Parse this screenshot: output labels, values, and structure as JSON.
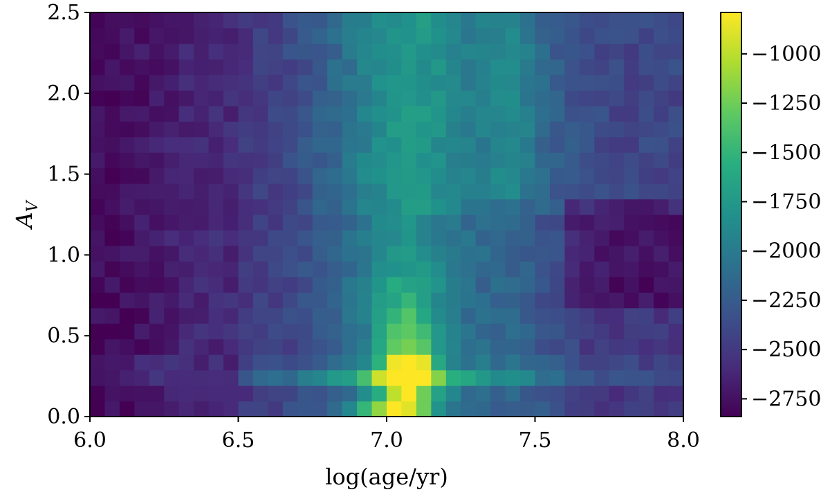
{
  "chart_data": {
    "type": "heatmap",
    "title": "",
    "xlabel": "log(age/yr)",
    "ylabel_main": "A",
    "ylabel_sub": "V",
    "xlim": [
      6.0,
      8.0
    ],
    "ylim": [
      0.0,
      2.5
    ],
    "x_ticks": [
      6.0,
      6.5,
      7.0,
      7.5,
      8.0
    ],
    "x_tick_labels": [
      "6.0",
      "6.5",
      "7.0",
      "7.5",
      "8.0"
    ],
    "y_ticks": [
      0.0,
      0.5,
      1.0,
      1.5,
      2.0,
      2.5
    ],
    "y_tick_labels": [
      "0.0",
      "0.5",
      "1.0",
      "1.5",
      "2.0",
      "2.5"
    ],
    "colormap": "viridis",
    "colorbar": {
      "vmin": -2840,
      "vmax": -790,
      "ticks": [
        -1000,
        -1250,
        -1500,
        -1750,
        -2000,
        -2250,
        -2500,
        -2750
      ],
      "tick_labels": [
        "−1000",
        "−1250",
        "−1500",
        "−1750",
        "−2000",
        "−2250",
        "−2500",
        "−2750"
      ]
    },
    "grid_shape": {
      "cols": 40,
      "rows": 26
    },
    "x_bin_width": 0.05,
    "y_bin_width": 0.1,
    "features": {
      "background_value": -2780,
      "ridge_log_age_center": 7.07,
      "peak": {
        "log_age": 7.07,
        "A_V": 0.25,
        "value": -810
      },
      "horizontal_band_A_V": [
        0.25,
        0.35
      ],
      "low_region": {
        "log_age_range": [
          7.55,
          8.0
        ],
        "A_V_range": [
          0.7,
          1.3
        ],
        "value": -2780
      }
    }
  }
}
